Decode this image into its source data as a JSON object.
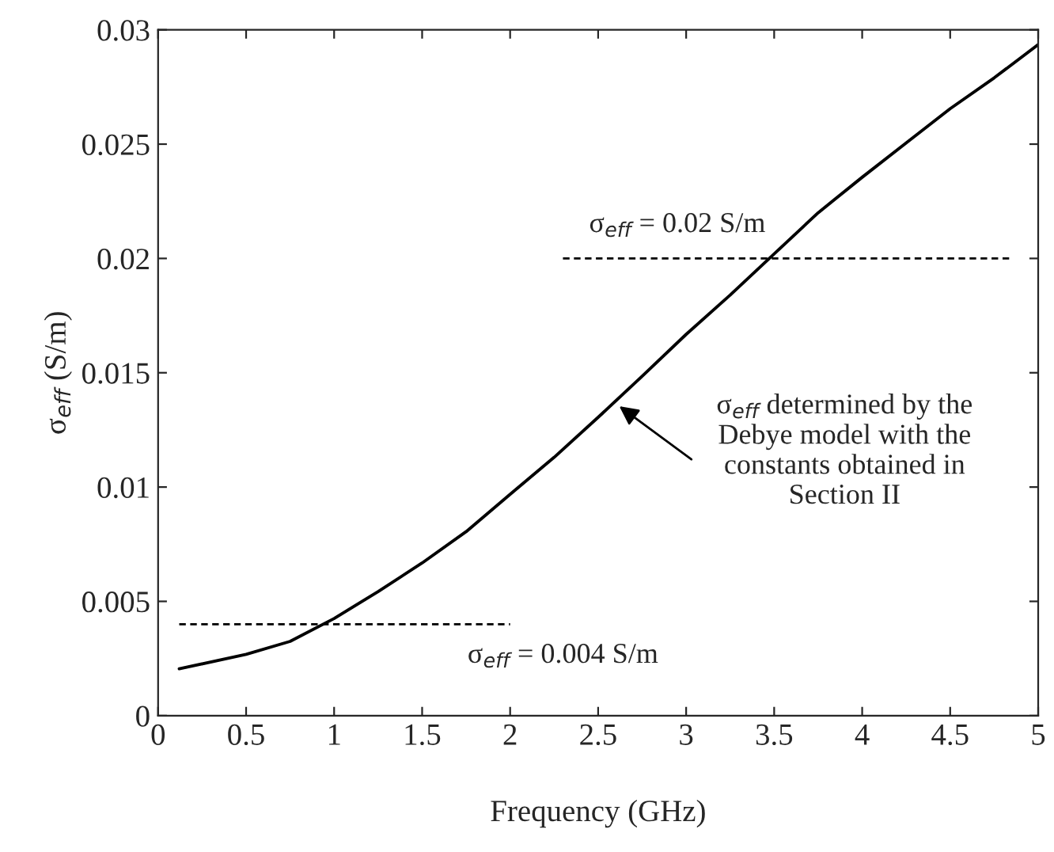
{
  "chart_data": {
    "type": "line",
    "xlabel": "Frequency (GHz)",
    "ylabel": "σ$_{eff}$ (S/m)",
    "xlim": [
      0,
      5
    ],
    "ylim": [
      0,
      0.03
    ],
    "xticks": [
      0,
      0.5,
      1,
      1.5,
      2,
      2.5,
      3,
      3.5,
      4,
      4.5,
      5
    ],
    "yticks": [
      0,
      0.005,
      0.01,
      0.015,
      0.02,
      0.025,
      0.03
    ],
    "grid": false,
    "legend": false,
    "series": [
      {
        "color": "#000000",
        "line_style": "solid",
        "x": [
          0.12,
          0.5,
          0.75,
          1.0,
          1.25,
          1.5,
          1.75,
          2.0,
          2.25,
          2.5,
          2.75,
          3.0,
          3.25,
          3.5,
          3.75,
          4.0,
          4.25,
          4.5,
          4.75,
          5.0
        ],
        "values": [
          0.00205,
          0.00268,
          0.00325,
          0.00425,
          0.00543,
          0.00668,
          0.00805,
          0.00968,
          0.0113,
          0.01305,
          0.01485,
          0.01668,
          0.0184,
          0.0202,
          0.022,
          0.02355,
          0.02505,
          0.02655,
          0.0279,
          0.02935
        ]
      },
      {
        "color": "#000000",
        "line_style": "dashed",
        "x": [
          0.12,
          2.0
        ],
        "values": [
          0.004,
          0.004
        ]
      },
      {
        "color": "#000000",
        "line_style": "dashed",
        "x": [
          2.3,
          4.85
        ],
        "values": [
          0.02,
          0.02
        ]
      }
    ],
    "annotations": [
      "σ$_{eff}$ = 0.02 S/m",
      "σ$_{eff}$ = 0.004 S/m",
      "σ$_{eff}$ determined by the\nDebye model with the\nconstants obtained in\nSection II"
    ]
  }
}
